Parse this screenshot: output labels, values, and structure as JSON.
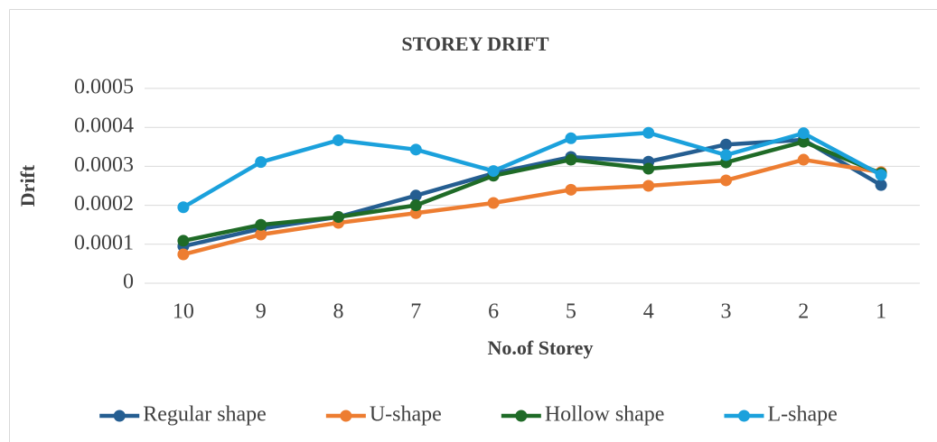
{
  "chart_data": {
    "type": "line",
    "title": "STOREY DRIFT",
    "x_label": "No.of Storey",
    "y_label": "Drift",
    "categories": [
      "10",
      "9",
      "8",
      "7",
      "6",
      "5",
      "4",
      "3",
      "2",
      "1"
    ],
    "series": [
      {
        "name": "Regular shape",
        "color": "#255e91",
        "values": [
          9.5e-05,
          0.00014,
          0.00017,
          0.000225,
          0.000282,
          0.000324,
          0.000312,
          0.000356,
          0.000368,
          0.000252
        ]
      },
      {
        "name": "U-shape",
        "color": "#ed7d31",
        "values": [
          7.4e-05,
          0.000125,
          0.000155,
          0.00018,
          0.000206,
          0.00024,
          0.00025,
          0.000264,
          0.000317,
          0.000285
        ]
      },
      {
        "name": "Hollow shape",
        "color": "#1f6b27",
        "values": [
          0.000109,
          0.00015,
          0.00017,
          0.0002,
          0.000276,
          0.000317,
          0.000294,
          0.00031,
          0.000363,
          0.000282
        ]
      },
      {
        "name": "L-shape",
        "color": "#1ba1dc",
        "values": [
          0.000195,
          0.000311,
          0.000367,
          0.000343,
          0.000288,
          0.000372,
          0.000386,
          0.000329,
          0.000385,
          0.000278
        ]
      }
    ],
    "ylim": [
      0,
      0.0005
    ],
    "yticks": [
      0,
      0.0001,
      0.0002,
      0.0003,
      0.0004,
      0.0005
    ],
    "grid": true,
    "legend": "bottom"
  }
}
